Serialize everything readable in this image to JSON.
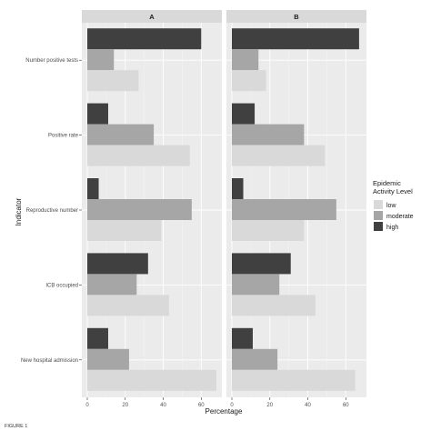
{
  "chart_data": {
    "type": "bar",
    "orientation": "horizontal",
    "xlabel": "Percentage",
    "ylabel": "Indicator",
    "xlim": [
      0,
      68
    ],
    "xticks": [
      0,
      20,
      40,
      60
    ],
    "grid": true,
    "categories": [
      "Number positive tests",
      "Positive rate",
      "Reproductive number",
      "ICB occupied",
      "New hospital admission"
    ],
    "legend": {
      "title": "Epidemic Activity Level",
      "placement": "right",
      "entries": [
        {
          "label": "low",
          "color": "#d9d9d9"
        },
        {
          "label": "moderate",
          "color": "#a6a6a6"
        },
        {
          "label": "high",
          "color": "#404040"
        }
      ]
    },
    "panels": [
      {
        "label": "A",
        "series": [
          {
            "name": "high",
            "values": [
              60,
              11,
              6,
              32,
              11
            ]
          },
          {
            "name": "moderate",
            "values": [
              14,
              35,
              55,
              26,
              22
            ]
          },
          {
            "name": "low",
            "values": [
              27,
              54,
              39,
              43,
              68
            ]
          }
        ]
      },
      {
        "label": "B",
        "series": [
          {
            "name": "high",
            "values": [
              67,
              12,
              6,
              31,
              11
            ]
          },
          {
            "name": "moderate",
            "values": [
              14,
              38,
              55,
              25,
              24
            ]
          },
          {
            "name": "low",
            "values": [
              18,
              49,
              38,
              44,
              65
            ]
          }
        ]
      }
    ]
  },
  "caption": "FIGURE 1"
}
